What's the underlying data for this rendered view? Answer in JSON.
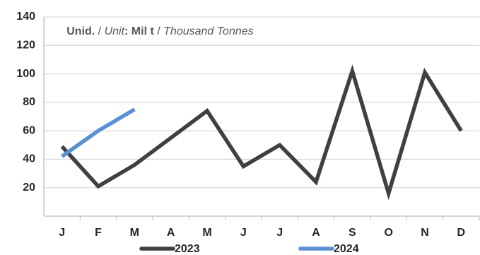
{
  "chart_data": {
    "type": "line",
    "annotation": [
      "Unid.",
      " / ",
      "Unit",
      ": Mil t",
      " / ",
      "Thousand Tonnes"
    ],
    "categories": [
      "J",
      "F",
      "M",
      "A",
      "M",
      "J",
      "J",
      "A",
      "S",
      "O",
      "N",
      "D"
    ],
    "series": [
      {
        "name": "2023",
        "color": "#404040",
        "values": [
          49,
          21,
          36,
          55,
          74,
          35,
          50,
          24,
          102,
          16,
          101,
          60
        ]
      },
      {
        "name": "2024",
        "color": "#5b8fd4",
        "values": [
          42,
          60,
          75,
          null,
          null,
          null,
          null,
          null,
          null,
          null,
          null,
          null
        ]
      }
    ],
    "ylim": [
      0,
      140
    ],
    "yticks": [
      20,
      40,
      60,
      80,
      100,
      120,
      140
    ],
    "grid": true,
    "legend": "bottom"
  }
}
